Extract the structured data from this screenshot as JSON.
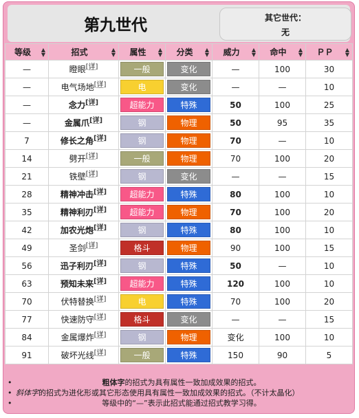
{
  "header": {
    "title": "第九世代",
    "other_gen_label": "其它世代：",
    "other_gen_value": "无"
  },
  "columns": [
    "等级",
    "招式",
    "属性",
    "分类",
    "威力",
    "命中",
    "ＰＰ"
  ],
  "sup_label": "[详]",
  "type_colors": {
    "一般": "#a8a878",
    "电": "#f8d030",
    "超能力": "#f85888",
    "钢": "#b8b8d0",
    "格斗": "#c03028"
  },
  "category_colors": {
    "变化": "#8c8c8c",
    "特殊": "#2f6bd6",
    "物理": "#ef6100"
  },
  "rows": [
    {
      "level": "—",
      "move": "瞪眼",
      "style": "",
      "type": "一般",
      "category": "变化",
      "power": "—",
      "power_bold": false,
      "accuracy": "100",
      "pp": "30"
    },
    {
      "level": "—",
      "move": "电气场地",
      "style": "",
      "type": "电",
      "category": "变化",
      "power": "—",
      "power_bold": false,
      "accuracy": "—",
      "pp": "10"
    },
    {
      "level": "—",
      "move": "念力",
      "style": "bold",
      "type": "超能力",
      "category": "特殊",
      "power": "50",
      "power_bold": true,
      "accuracy": "100",
      "pp": "25"
    },
    {
      "level": "—",
      "move": "金属爪",
      "style": "bold",
      "type": "钢",
      "category": "物理",
      "power": "50",
      "power_bold": true,
      "accuracy": "95",
      "pp": "35"
    },
    {
      "level": "7",
      "move": "修长之角",
      "style": "bold",
      "type": "钢",
      "category": "物理",
      "power": "70",
      "power_bold": true,
      "accuracy": "—",
      "pp": "10"
    },
    {
      "level": "14",
      "move": "劈开",
      "style": "",
      "type": "一般",
      "category": "物理",
      "power": "70",
      "power_bold": false,
      "accuracy": "100",
      "pp": "20"
    },
    {
      "level": "21",
      "move": "铁壁",
      "style": "",
      "type": "钢",
      "category": "变化",
      "power": "—",
      "power_bold": false,
      "accuracy": "—",
      "pp": "15"
    },
    {
      "level": "28",
      "move": "精神冲击",
      "style": "bold",
      "type": "超能力",
      "category": "特殊",
      "power": "80",
      "power_bold": true,
      "accuracy": "100",
      "pp": "10"
    },
    {
      "level": "35",
      "move": "精神利刃",
      "style": "bold",
      "type": "超能力",
      "category": "物理",
      "power": "70",
      "power_bold": true,
      "accuracy": "100",
      "pp": "20"
    },
    {
      "level": "42",
      "move": "加农光炮",
      "style": "bold",
      "type": "钢",
      "category": "特殊",
      "power": "80",
      "power_bold": true,
      "accuracy": "100",
      "pp": "10"
    },
    {
      "level": "49",
      "move": "圣剑",
      "style": "",
      "type": "格斗",
      "category": "物理",
      "power": "90",
      "power_bold": false,
      "accuracy": "100",
      "pp": "15"
    },
    {
      "level": "56",
      "move": "迅子利刃",
      "style": "bold",
      "type": "钢",
      "category": "特殊",
      "power": "50",
      "power_bold": true,
      "accuracy": "—",
      "pp": "10"
    },
    {
      "level": "63",
      "move": "预知未来",
      "style": "bold",
      "type": "超能力",
      "category": "特殊",
      "power": "120",
      "power_bold": true,
      "accuracy": "100",
      "pp": "10"
    },
    {
      "level": "70",
      "move": "伏特替换",
      "style": "",
      "type": "电",
      "category": "特殊",
      "power": "70",
      "power_bold": false,
      "accuracy": "100",
      "pp": "20"
    },
    {
      "level": "77",
      "move": "快速防守",
      "style": "",
      "type": "格斗",
      "category": "变化",
      "power": "—",
      "power_bold": false,
      "accuracy": "—",
      "pp": "15"
    },
    {
      "level": "84",
      "move": "金属爆炸",
      "style": "",
      "type": "钢",
      "category": "物理",
      "power": "变化",
      "power_bold": false,
      "accuracy": "100",
      "pp": "10"
    },
    {
      "level": "91",
      "move": "破坏光线",
      "style": "",
      "type": "一般",
      "category": "特殊",
      "power": "150",
      "power_bold": false,
      "accuracy": "90",
      "pp": "5"
    }
  ],
  "footnotes": {
    "line1_bold": "粗体字",
    "line1_rest": "的招式为具有属性一致加成效果的招式。",
    "line2_italic": "斜体字",
    "line2_rest": "的招式为进化形或其它形态使用具有属性一致加成效果的招式。（不计太晶化）",
    "line3": "等级中的“—”表示此招式能通过招式教学习得。"
  }
}
